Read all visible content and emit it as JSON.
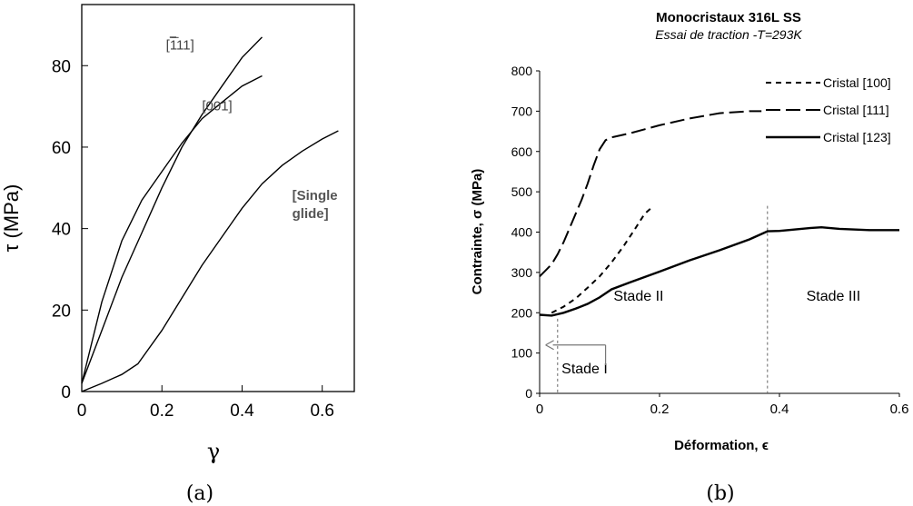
{
  "chart_data": [
    {
      "type": "line",
      "panel_label": "(a)",
      "xlabel": "γ",
      "ylabel": "τ (MPa)",
      "xlim": [
        0,
        0.68
      ],
      "ylim": [
        0,
        95
      ],
      "xticks": [
        {
          "v": 0,
          "label": "0"
        },
        {
          "v": 0.2,
          "label": "0.2"
        },
        {
          "v": 0.4,
          "label": "0.4"
        },
        {
          "v": 0.6,
          "label": "0.6"
        }
      ],
      "yticks": [
        {
          "v": 0,
          "label": "0"
        },
        {
          "v": 20,
          "label": "20"
        },
        {
          "v": 40,
          "label": "40"
        },
        {
          "v": 60,
          "label": "60"
        },
        {
          "v": 80,
          "label": "80"
        }
      ],
      "series": [
        {
          "name": "[111]",
          "overbar": "1",
          "rest": "11",
          "label_at": [
            0.21,
            84
          ],
          "points": [
            [
              0,
              2
            ],
            [
              0.05,
              15
            ],
            [
              0.1,
              28
            ],
            [
              0.15,
              39
            ],
            [
              0.2,
              50
            ],
            [
              0.25,
              60
            ],
            [
              0.3,
              68
            ],
            [
              0.35,
              75
            ],
            [
              0.4,
              82
            ],
            [
              0.45,
              87
            ]
          ]
        },
        {
          "name": "[001]",
          "label_at": [
            0.3,
            69
          ],
          "points": [
            [
              0,
              2
            ],
            [
              0.05,
              22
            ],
            [
              0.1,
              37
            ],
            [
              0.15,
              47
            ],
            [
              0.2,
              54
            ],
            [
              0.25,
              61
            ],
            [
              0.3,
              67
            ],
            [
              0.35,
              71
            ],
            [
              0.4,
              75
            ],
            [
              0.45,
              77.5
            ]
          ]
        },
        {
          "name": "[Single glide]",
          "label_lines": [
            "[Single",
            "glide]"
          ],
          "label_at": [
            0.525,
            47
          ],
          "bold_label": true,
          "points": [
            [
              0,
              0
            ],
            [
              0.05,
              2
            ],
            [
              0.1,
              4.2
            ],
            [
              0.14,
              6.8
            ],
            [
              0.2,
              15
            ],
            [
              0.25,
              23
            ],
            [
              0.3,
              31
            ],
            [
              0.35,
              38
            ],
            [
              0.4,
              45
            ],
            [
              0.45,
              51
            ],
            [
              0.5,
              55.5
            ],
            [
              0.55,
              59
            ],
            [
              0.6,
              62
            ],
            [
              0.64,
              64
            ]
          ]
        }
      ]
    },
    {
      "type": "line",
      "panel_label": "(b)",
      "title": "Monocristaux 316L SS",
      "subtitle": "Essai de traction -T=293K",
      "xlabel": "Déformation, ϵ",
      "ylabel": "Contrainte, σ (MPa)",
      "xlim": [
        0,
        0.6
      ],
      "ylim": [
        0,
        800
      ],
      "xticks": [
        {
          "v": 0,
          "label": "0"
        },
        {
          "v": 0.2,
          "label": "0.2"
        },
        {
          "v": 0.4,
          "label": "0.4"
        },
        {
          "v": 0.6,
          "label": "0.6"
        }
      ],
      "yticks": [
        {
          "v": 0,
          "label": "0"
        },
        {
          "v": 100,
          "label": "100"
        },
        {
          "v": 200,
          "label": "200"
        },
        {
          "v": 300,
          "label": "300"
        },
        {
          "v": 400,
          "label": "400"
        },
        {
          "v": 500,
          "label": "500"
        },
        {
          "v": 600,
          "label": "600"
        },
        {
          "v": 700,
          "label": "700"
        },
        {
          "v": 800,
          "label": "800"
        }
      ],
      "legend_placement": "top-right",
      "series": [
        {
          "name": "Cristal [100]",
          "dash": "short",
          "points": [
            [
              0.02,
              200
            ],
            [
              0.04,
              215
            ],
            [
              0.06,
              235
            ],
            [
              0.08,
              262
            ],
            [
              0.1,
              290
            ],
            [
              0.12,
              325
            ],
            [
              0.14,
              365
            ],
            [
              0.16,
              410
            ],
            [
              0.175,
              445
            ],
            [
              0.19,
              465
            ]
          ]
        },
        {
          "name": "Cristal [111]",
          "dash": "long",
          "points": [
            [
              0,
              290
            ],
            [
              0.01,
              305
            ],
            [
              0.02,
              320
            ],
            [
              0.03,
              345
            ],
            [
              0.04,
              375
            ],
            [
              0.05,
              410
            ],
            [
              0.06,
              445
            ],
            [
              0.07,
              480
            ],
            [
              0.08,
              520
            ],
            [
              0.09,
              565
            ],
            [
              0.1,
              605
            ],
            [
              0.11,
              628
            ],
            [
              0.12,
              635
            ],
            [
              0.15,
              645
            ],
            [
              0.2,
              665
            ],
            [
              0.25,
              682
            ],
            [
              0.3,
              695
            ],
            [
              0.35,
              700
            ],
            [
              0.37,
              700
            ]
          ]
        },
        {
          "name": "Cristal [123]",
          "dash": "solid",
          "points": [
            [
              0,
              195
            ],
            [
              0.02,
              193
            ],
            [
              0.04,
              200
            ],
            [
              0.06,
              210
            ],
            [
              0.08,
              222
            ],
            [
              0.1,
              238
            ],
            [
              0.12,
              258
            ],
            [
              0.15,
              275
            ],
            [
              0.2,
              302
            ],
            [
              0.25,
              330
            ],
            [
              0.3,
              355
            ],
            [
              0.35,
              382
            ],
            [
              0.38,
              402
            ],
            [
              0.4,
              403
            ],
            [
              0.45,
              410
            ],
            [
              0.47,
              412
            ],
            [
              0.5,
              408
            ],
            [
              0.55,
              405
            ],
            [
              0.6,
              405
            ]
          ]
        }
      ],
      "vlines": [
        0.03,
        0.38
      ],
      "annotations": [
        {
          "text": "Stade II",
          "at": [
            0.165,
            230
          ]
        },
        {
          "text": "Stade III",
          "at": [
            0.49,
            230
          ]
        },
        {
          "text": "Stade I",
          "at": [
            0.075,
            50
          ]
        }
      ],
      "arrow": {
        "from": [
          0.11,
          120
        ],
        "to": [
          0.01,
          120
        ],
        "down_to": 70
      }
    }
  ]
}
